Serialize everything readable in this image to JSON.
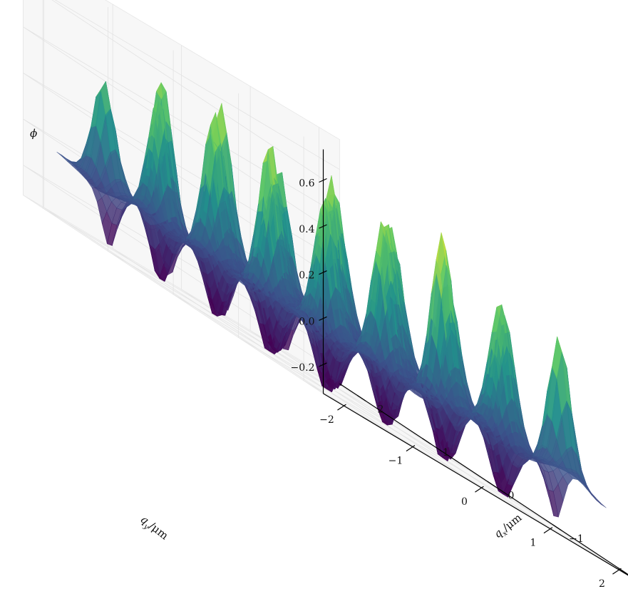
{
  "chart_data": {
    "type": "surface",
    "title": "",
    "colormap": "viridis",
    "colormap_colors": [
      "#440154",
      "#3b528b",
      "#21918c",
      "#5ec962",
      "#fde725"
    ],
    "pane_color": "#f7f7f7",
    "x_axis": {
      "label": "q_x / μm",
      "label_main": "q",
      "label_sub": "x",
      "label_unit": "/μm",
      "ticks": [
        -2,
        -1,
        0,
        1,
        2
      ],
      "tick_labels": [
        "−2",
        "−1",
        "0",
        "1",
        "2"
      ],
      "range": [
        -2.3,
        2.3
      ]
    },
    "y_axis": {
      "label": "q_y / μm",
      "label_main": "q",
      "label_sub": "y",
      "label_unit": "/μm",
      "ticks": [
        -2,
        -1,
        0,
        1,
        2
      ],
      "tick_labels": [
        "−2",
        "−1",
        "0",
        "1",
        "2"
      ],
      "range": [
        -2.3,
        2.3
      ]
    },
    "z_axis": {
      "label": "ϕ",
      "ticks": [
        -0.2,
        0.0,
        0.2,
        0.4,
        0.6
      ],
      "tick_labels": [
        "−0.2",
        "0.0",
        "0.2",
        "0.4",
        "0.6"
      ],
      "range": [
        -0.33,
        0.73
      ]
    },
    "surface_peaks": [
      {
        "qx": -1.7,
        "qy": -1.7,
        "phi": 0.55
      },
      {
        "qx": -0.85,
        "qy": -1.7,
        "phi": 0.62
      },
      {
        "qx": 0.0,
        "qy": -1.7,
        "phi": 0.6
      },
      {
        "qx": 0.85,
        "qy": -1.7,
        "phi": 0.52
      },
      {
        "qx": 1.7,
        "qy": -1.7,
        "phi": 0.42
      },
      {
        "qx": -1.7,
        "qy": -0.85,
        "phi": 0.6
      },
      {
        "qx": -0.85,
        "qy": -0.85,
        "phi": 0.58
      },
      {
        "qx": 0.0,
        "qy": -0.85,
        "phi": 0.44
      },
      {
        "qx": 0.85,
        "qy": -0.85,
        "phi": 0.45
      },
      {
        "qx": 1.7,
        "qy": -0.85,
        "phi": 0.58
      },
      {
        "qx": -1.7,
        "qy": 0.0,
        "phi": 0.7
      },
      {
        "qx": -0.85,
        "qy": 0.0,
        "phi": 0.56
      },
      {
        "qx": 0.0,
        "qy": 0.0,
        "phi": 0.62
      },
      {
        "qx": 0.85,
        "qy": 0.0,
        "phi": 0.49
      },
      {
        "qx": 1.7,
        "qy": 0.0,
        "phi": 0.62
      },
      {
        "qx": -1.7,
        "qy": 0.85,
        "phi": 0.55
      },
      {
        "qx": -0.85,
        "qy": 0.85,
        "phi": 0.52
      },
      {
        "qx": 0.0,
        "qy": 0.85,
        "phi": 0.57
      },
      {
        "qx": 0.85,
        "qy": 0.85,
        "phi": 0.54
      },
      {
        "qx": 1.7,
        "qy": 0.85,
        "phi": 0.5
      },
      {
        "qx": -1.7,
        "qy": 1.7,
        "phi": 0.55
      },
      {
        "qx": -0.85,
        "qy": 1.7,
        "phi": 0.48
      },
      {
        "qx": 0.0,
        "qy": 1.7,
        "phi": 0.45
      },
      {
        "qx": 0.85,
        "qy": 1.7,
        "phi": 0.5
      },
      {
        "qx": 1.7,
        "qy": 1.7,
        "phi": 0.42
      }
    ],
    "surface_min": -0.3
  }
}
